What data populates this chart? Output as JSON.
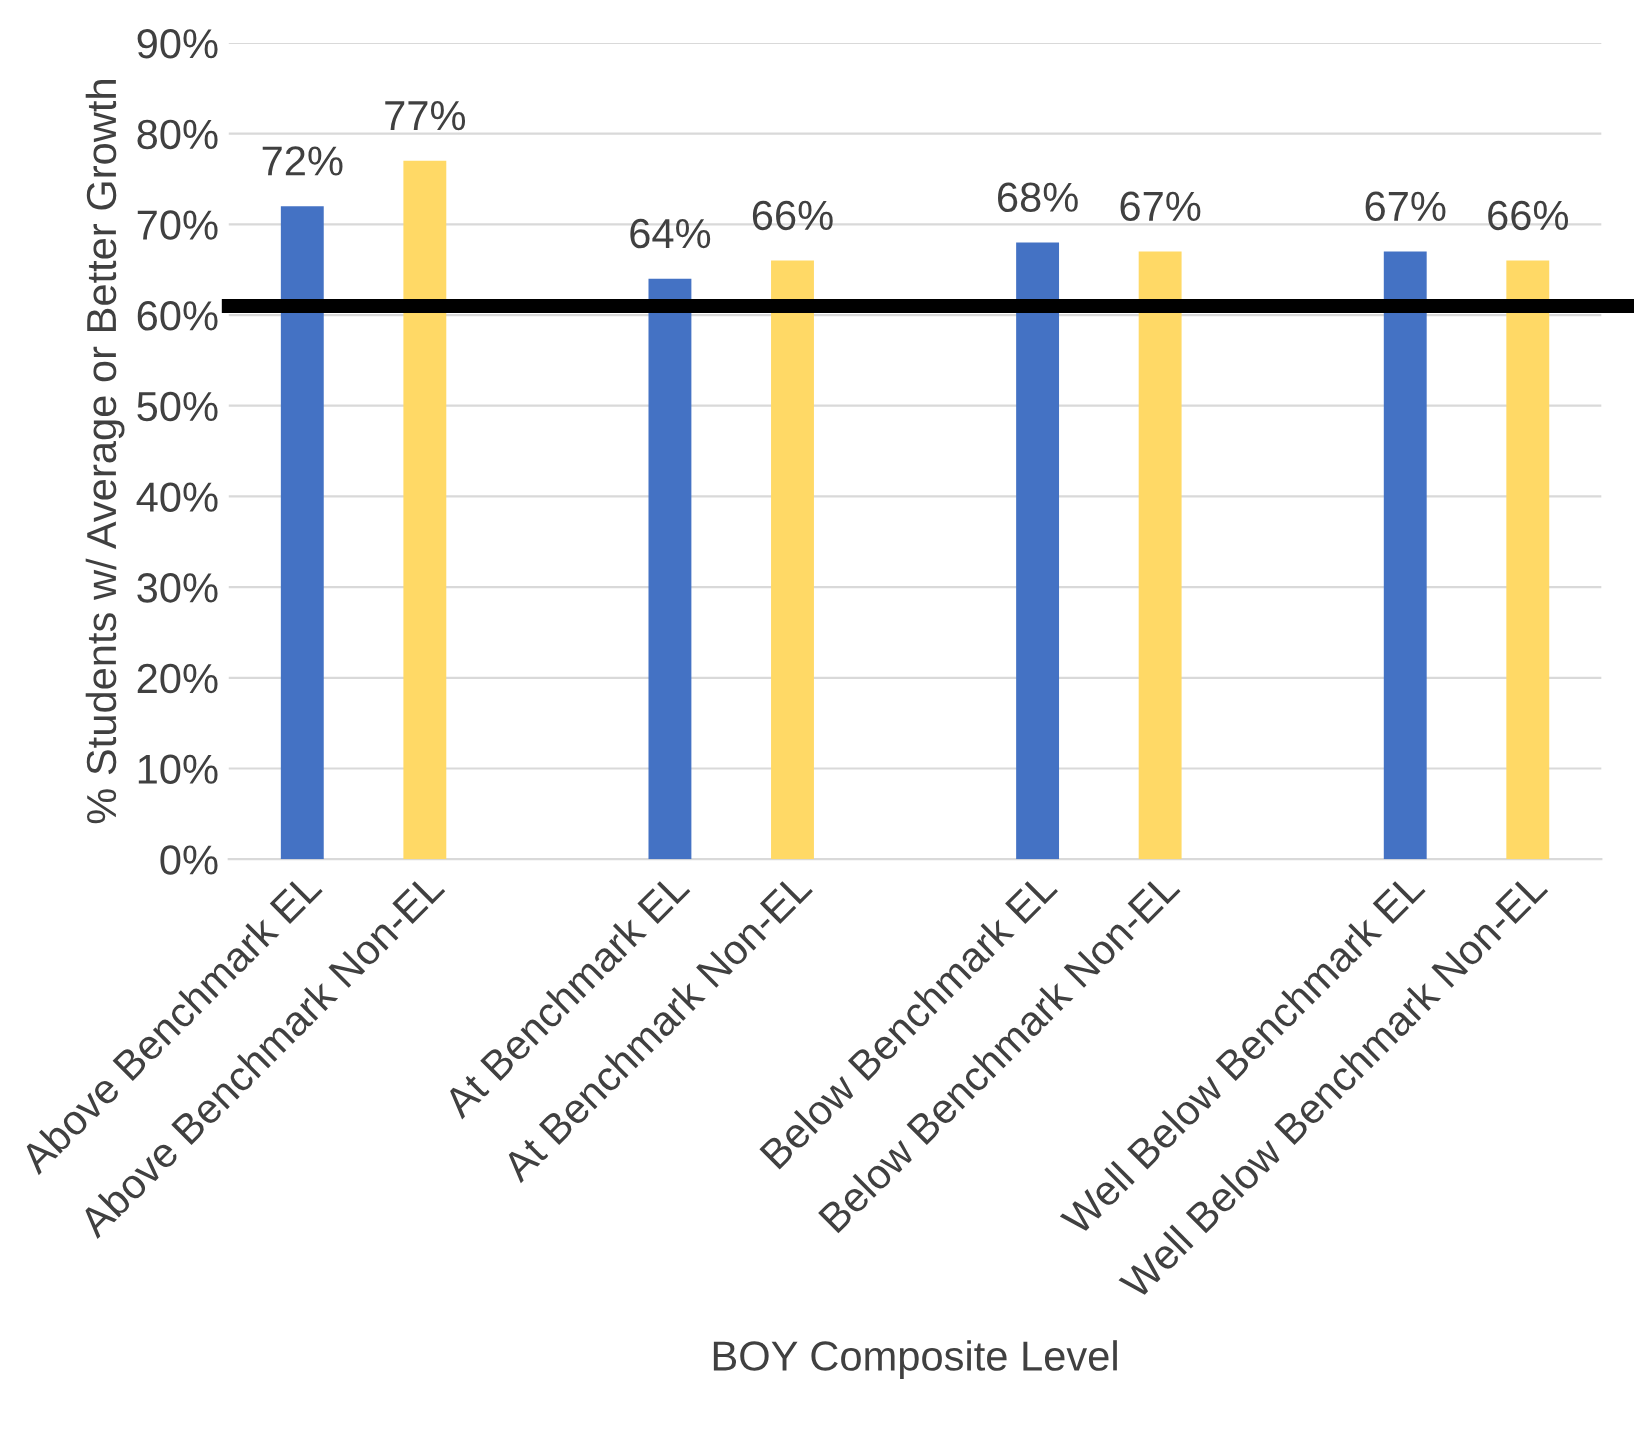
{
  "chart_data": {
    "type": "bar",
    "xlabel": "BOY Composite Level",
    "ylabel": "% Students w/ Average or Better Growth",
    "categories": [
      "Above Benchmark EL",
      "Above Benchmark Non-EL",
      null,
      "At Benchmark EL",
      "At Benchmark Non-EL",
      null,
      "Below Benchmark EL",
      "Below Benchmark Non-EL",
      null,
      "Well Below Benchmark EL",
      "Well Below Benchmark Non-EL"
    ],
    "values": [
      72,
      77,
      null,
      64,
      66,
      null,
      68,
      67,
      null,
      67,
      66
    ],
    "colors": [
      "#4472c4",
      "#ffd966",
      null,
      "#4472c4",
      "#ffd966",
      null,
      "#4472c4",
      "#ffd966",
      null,
      "#4472c4",
      "#ffd966"
    ],
    "value_labels": [
      "72%",
      "77%",
      null,
      "64%",
      "66%",
      null,
      "68%",
      "67%",
      null,
      "67%",
      "66%"
    ],
    "ylim": [
      0,
      90
    ],
    "yticks": [
      {
        "value": 0,
        "label": "0%"
      },
      {
        "value": 10,
        "label": "10%"
      },
      {
        "value": 20,
        "label": "20%"
      },
      {
        "value": 30,
        "label": "30%"
      },
      {
        "value": 40,
        "label": "40%"
      },
      {
        "value": 50,
        "label": "50%"
      },
      {
        "value": 60,
        "label": "60%"
      },
      {
        "value": 70,
        "label": "70%"
      },
      {
        "value": 80,
        "label": "80%"
      },
      {
        "value": 90,
        "label": "90%"
      }
    ],
    "grid": "y",
    "legend": false,
    "ref_lines": [
      {
        "axis": "y",
        "value": 61,
        "color": "#000000"
      }
    ]
  }
}
